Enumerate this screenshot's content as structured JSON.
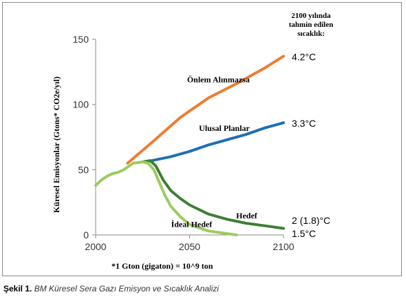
{
  "chart_data": {
    "type": "line",
    "ylabel": "Küresel Emisyonlar (Gtons* CO2e/yıl)",
    "xlabel": "",
    "xlim": [
      2000,
      2100
    ],
    "ylim": [
      0,
      150
    ],
    "x_ticks": [
      "2000",
      "2050",
      "2100"
    ],
    "y_ticks": [
      "0",
      "50",
      "100",
      "150"
    ],
    "grid": false,
    "legend_title": [
      "2100 yılında",
      "tahmin edilen",
      "sıcaklık:"
    ],
    "footnote": "*1 Gton (gigaton) = 10^9 ton",
    "series": [
      {
        "name": "Önlem Alınmazsa",
        "end_label": "4.2°C",
        "color": "#ed7d31",
        "x": [
          2017,
          2030,
          2045,
          2060,
          2075,
          2090,
          2100
        ],
        "y": [
          55,
          71,
          90,
          105,
          116,
          128,
          137
        ]
      },
      {
        "name": "Ulusal Planlar",
        "end_label": "3.3°C",
        "color": "#1f6fb4",
        "x": [
          2025,
          2030,
          2040,
          2050,
          2060,
          2070,
          2080,
          2090,
          2100
        ],
        "y": [
          56,
          57,
          60,
          64,
          69,
          73,
          77,
          82,
          86
        ]
      },
      {
        "name": "Hedef",
        "end_label": "2 (1.8)°C",
        "color": "#3d7f34",
        "x": [
          2025,
          2029,
          2032,
          2036,
          2040,
          2045,
          2050,
          2060,
          2070,
          2080,
          2090,
          2100
        ],
        "y": [
          56,
          57,
          53,
          42,
          34,
          28,
          23,
          16,
          12,
          9,
          7,
          5
        ]
      },
      {
        "name": "İdeal Hedef",
        "end_label": "1.5°C",
        "color": "#9dcb5f",
        "x": [
          2015,
          2020,
          2025,
          2028,
          2031,
          2034,
          2037,
          2040,
          2045,
          2050,
          2060,
          2070,
          2075
        ],
        "y": [
          50,
          55,
          56,
          55,
          50,
          40,
          30,
          22,
          14,
          8,
          3,
          1,
          0
        ]
      },
      {
        "name": "",
        "end_label": "",
        "color": "#9dcb5f",
        "x": [
          2000,
          2003,
          2006,
          2009,
          2012,
          2015
        ],
        "y": [
          38,
          42,
          45,
          47,
          48,
          50
        ]
      }
    ]
  },
  "caption": {
    "label": "Şekil 1.",
    "text": "BM Küresel Sera Gazı Emisyon ve Sıcaklık Analizi"
  }
}
